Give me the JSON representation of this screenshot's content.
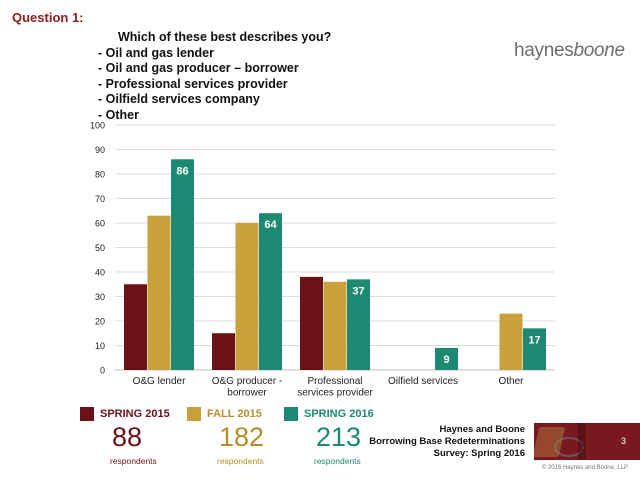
{
  "question": {
    "label": "Question 1:",
    "text": "Which of these best describes you?",
    "options": [
      "Oil and gas lender",
      "Oil and gas producer – borrower",
      "Professional services provider",
      "Oilfield services company",
      "Other"
    ]
  },
  "logo": {
    "part1": "haynes",
    "part2": "boone"
  },
  "chart_data": {
    "type": "bar",
    "categories": [
      [
        "O&G lender"
      ],
      [
        "O&G producer -",
        "borrower"
      ],
      [
        "Professional",
        "services provider"
      ],
      [
        "Oilfield services"
      ],
      [
        "Other"
      ]
    ],
    "series": [
      {
        "name": "SPRING 2015",
        "color": "#6b1218",
        "values": [
          35,
          15,
          38,
          0,
          0
        ]
      },
      {
        "name": "FALL 2015",
        "color": "#c9a03c",
        "values": [
          63,
          60,
          36,
          0,
          23
        ]
      },
      {
        "name": "SPRING 2016",
        "color": "#1c8a72",
        "values": [
          86,
          64,
          37,
          9,
          17
        ]
      }
    ],
    "data_labels_series": "SPRING 2016",
    "ylim": [
      0,
      100
    ],
    "yticks": [
      0,
      10,
      20,
      30,
      40,
      50,
      60,
      70,
      80,
      90,
      100
    ],
    "grid": true,
    "legend": "bottom"
  },
  "legend": [
    {
      "name": "SPRING 2015",
      "count": "88",
      "unit": "respondents",
      "color": "#6b1218"
    },
    {
      "name": "FALL 2015",
      "count": "182",
      "unit": "respondents",
      "color": "#c9a03c"
    },
    {
      "name": "SPRING 2016",
      "count": "213",
      "unit": "respondents",
      "color": "#1c8a72"
    }
  ],
  "footer": {
    "line1": "Haynes and Boone",
    "line2": "Borrowing Base Redeterminations",
    "line3": "Survey: Spring 2016",
    "page": "3",
    "copyright": "© 2016 Haynes and Boone, LLP"
  }
}
